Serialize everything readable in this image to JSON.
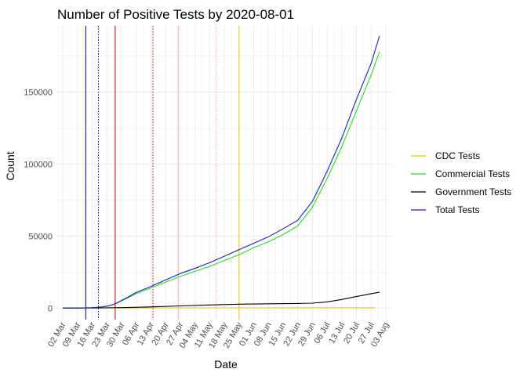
{
  "chart_data": {
    "type": "line",
    "title": "Number of Positive Tests by  2020-08-01",
    "xlabel": "Date",
    "ylabel": "Count",
    "x_range": [
      "2020-02-28",
      "2020-08-06"
    ],
    "ylim": [
      -8000,
      196000
    ],
    "y_ticks": [
      0,
      50000,
      100000,
      150000
    ],
    "y_tick_labels": [
      "0",
      "50000",
      "100000",
      "150000"
    ],
    "x_ticks": [
      "2020-03-02",
      "2020-03-09",
      "2020-03-16",
      "2020-03-23",
      "2020-03-30",
      "2020-04-06",
      "2020-04-13",
      "2020-04-20",
      "2020-04-27",
      "2020-05-04",
      "2020-05-11",
      "2020-05-18",
      "2020-05-25",
      "2020-06-01",
      "2020-06-08",
      "2020-06-15",
      "2020-06-22",
      "2020-06-29",
      "2020-07-06",
      "2020-07-13",
      "2020-07-20",
      "2020-07-27",
      "2020-08-03"
    ],
    "x_tick_labels": [
      "02 Mar",
      "09 Mar",
      "16 Mar",
      "23 Mar",
      "30 Mar",
      "06 Apr",
      "13 Apr",
      "20 Apr",
      "27 Apr",
      "04 May",
      "11 May",
      "18 May",
      "25 May",
      "01 Jun",
      "08 Jun",
      "15 Jun",
      "22 Jun",
      "29 Jun",
      "06 Jul",
      "13 Jul",
      "20 Jul",
      "27 Jul",
      "03 Aug"
    ],
    "grid": true,
    "legend_position": "right",
    "series": [
      {
        "name": "CDC Tests",
        "color": "#f2c500",
        "points": [
          [
            "2020-03-02",
            0
          ],
          [
            "2020-03-16",
            40
          ],
          [
            "2020-04-01",
            100
          ],
          [
            "2020-05-01",
            150
          ],
          [
            "2020-06-01",
            180
          ],
          [
            "2020-07-01",
            200
          ],
          [
            "2020-07-29",
            200
          ]
        ]
      },
      {
        "name": "Commercial Tests",
        "color": "#19e619",
        "points": [
          [
            "2020-03-02",
            0
          ],
          [
            "2020-03-10",
            20
          ],
          [
            "2020-03-16",
            200
          ],
          [
            "2020-03-20",
            600
          ],
          [
            "2020-03-24",
            1500
          ],
          [
            "2020-03-27",
            2800
          ],
          [
            "2020-03-30",
            5000
          ],
          [
            "2020-04-02",
            7000
          ],
          [
            "2020-04-06",
            10000
          ],
          [
            "2020-04-13",
            14000
          ],
          [
            "2020-04-20",
            18000
          ],
          [
            "2020-04-27",
            22000
          ],
          [
            "2020-05-04",
            25500
          ],
          [
            "2020-05-11",
            29000
          ],
          [
            "2020-05-18",
            33000
          ],
          [
            "2020-05-25",
            37000
          ],
          [
            "2020-06-01",
            42000
          ],
          [
            "2020-06-08",
            46000
          ],
          [
            "2020-06-15",
            51000
          ],
          [
            "2020-06-22",
            57000
          ],
          [
            "2020-06-29",
            70000
          ],
          [
            "2020-07-06",
            90000
          ],
          [
            "2020-07-13",
            112000
          ],
          [
            "2020-07-20",
            137000
          ],
          [
            "2020-07-27",
            162000
          ],
          [
            "2020-07-31",
            178000
          ]
        ]
      },
      {
        "name": "Government Tests",
        "color": "#000000",
        "points": [
          [
            "2020-03-02",
            0
          ],
          [
            "2020-03-16",
            100
          ],
          [
            "2020-03-30",
            300
          ],
          [
            "2020-04-13",
            800
          ],
          [
            "2020-04-27",
            1500
          ],
          [
            "2020-05-11",
            2200
          ],
          [
            "2020-05-25",
            2700
          ],
          [
            "2020-06-08",
            3000
          ],
          [
            "2020-06-22",
            3200
          ],
          [
            "2020-06-29",
            3400
          ],
          [
            "2020-07-06",
            4300
          ],
          [
            "2020-07-13",
            6000
          ],
          [
            "2020-07-20",
            8000
          ],
          [
            "2020-07-27",
            10000
          ],
          [
            "2020-07-31",
            11000
          ]
        ]
      },
      {
        "name": "Total Tests",
        "color": "#1a1acc",
        "points": [
          [
            "2020-03-02",
            0
          ],
          [
            "2020-03-10",
            20
          ],
          [
            "2020-03-16",
            300
          ],
          [
            "2020-03-20",
            700
          ],
          [
            "2020-03-24",
            1600
          ],
          [
            "2020-03-27",
            3000
          ],
          [
            "2020-03-30",
            5300
          ],
          [
            "2020-04-02",
            7500
          ],
          [
            "2020-04-06",
            10800
          ],
          [
            "2020-04-13",
            15000
          ],
          [
            "2020-04-20",
            19500
          ],
          [
            "2020-04-27",
            24000
          ],
          [
            "2020-05-04",
            27500
          ],
          [
            "2020-05-11",
            31500
          ],
          [
            "2020-05-18",
            36000
          ],
          [
            "2020-05-25",
            40500
          ],
          [
            "2020-06-01",
            45000
          ],
          [
            "2020-06-08",
            49500
          ],
          [
            "2020-06-15",
            55000
          ],
          [
            "2020-06-22",
            61000
          ],
          [
            "2020-06-29",
            74000
          ],
          [
            "2020-07-06",
            95000
          ],
          [
            "2020-07-13",
            118000
          ],
          [
            "2020-07-20",
            145000
          ],
          [
            "2020-07-27",
            170000
          ],
          [
            "2020-07-31",
            189000
          ]
        ]
      }
    ],
    "reference_lines": [
      {
        "date": "2020-03-13",
        "color": "#0000ff",
        "style": "solid"
      },
      {
        "date": "2020-03-19",
        "color": "#0000ff",
        "style": "dotted"
      },
      {
        "date": "2020-03-27",
        "color": "#cc0000",
        "style": "solid"
      },
      {
        "date": "2020-04-14",
        "color": "#cc0000",
        "style": "dotted"
      },
      {
        "date": "2020-04-26",
        "color": "#f4a6a6",
        "style": "solid"
      },
      {
        "date": "2020-05-14",
        "color": "#f4a6a6",
        "style": "dotted"
      },
      {
        "date": "2020-05-25",
        "color": "#f2c500",
        "style": "solid"
      }
    ]
  }
}
